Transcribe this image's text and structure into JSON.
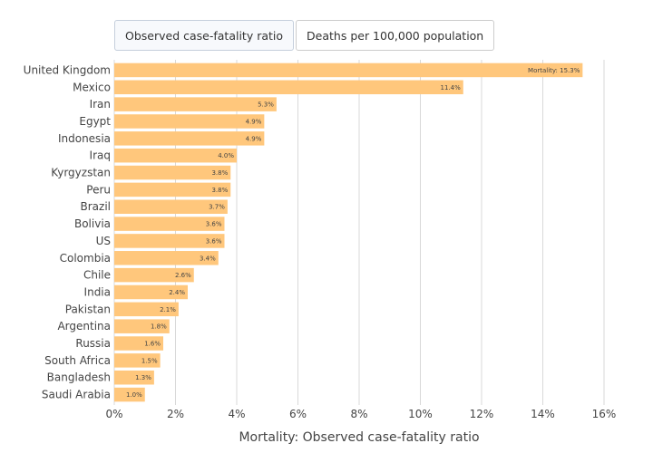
{
  "toggle": {
    "buttons": [
      {
        "label": "Observed case-fatality ratio",
        "active": true
      },
      {
        "label": "Deaths per 100,000 population",
        "active": false
      }
    ]
  },
  "colors": {
    "bar": "#ffc77c",
    "grid": "#d9d9d9"
  },
  "chart_data": {
    "type": "bar",
    "orientation": "horizontal",
    "categories": [
      "United Kingdom",
      "Mexico",
      "Iran",
      "Egypt",
      "Indonesia",
      "Iraq",
      "Kyrgyzstan",
      "Peru",
      "Brazil",
      "Bolivia",
      "US",
      "Colombia",
      "Chile",
      "India",
      "Pakistan",
      "Argentina",
      "Russia",
      "South Africa",
      "Bangladesh",
      "Saudi Arabia"
    ],
    "values": [
      15.3,
      11.4,
      5.3,
      4.9,
      4.9,
      4.0,
      3.8,
      3.8,
      3.7,
      3.6,
      3.6,
      3.4,
      2.6,
      2.4,
      2.1,
      1.8,
      1.6,
      1.5,
      1.3,
      1.0
    ],
    "data_labels": [
      "Mortality: 15.3%",
      "11.4%",
      "5.3%",
      "4.9%",
      "4.9%",
      "4.0%",
      "3.8%",
      "3.8%",
      "3.7%",
      "3.6%",
      "3.6%",
      "3.4%",
      "2.6%",
      "2.4%",
      "2.1%",
      "1.8%",
      "1.6%",
      "1.5%",
      "1.3%",
      "1.0%"
    ],
    "xlabel": "Mortality: Observed case-fatality ratio",
    "xlim": [
      0,
      16
    ],
    "xticks": [
      0,
      2,
      4,
      6,
      8,
      10,
      12,
      14,
      16
    ],
    "xtick_labels": [
      "0%",
      "2%",
      "4%",
      "6%",
      "8%",
      "10%",
      "12%",
      "14%",
      "16%"
    ],
    "grid": true
  }
}
